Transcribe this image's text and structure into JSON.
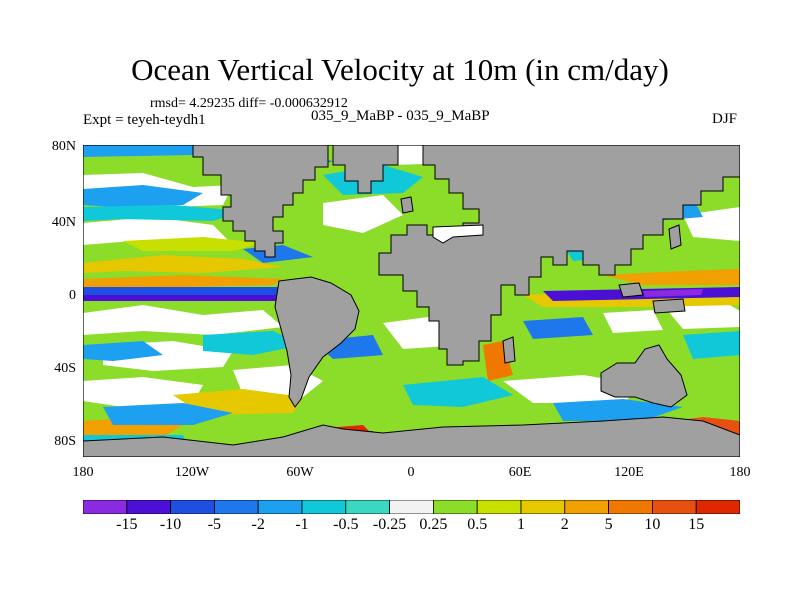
{
  "title": "Ocean Vertical Velocity at 10m (in cm/day)",
  "stats": "rmsd= 4.29235 diff= -0.000632912",
  "subtitle": "035_9_MaBP - 035_9_MaBP",
  "expt": "Expt = teyeh-teydh1",
  "season": "DJF",
  "lat_labels": [
    "80N",
    "40N",
    "0",
    "40S",
    "80S"
  ],
  "lon_labels": [
    "180",
    "120W",
    "60W",
    "0",
    "60E",
    "120E",
    "180"
  ],
  "colorbar": {
    "labels": [
      "-15",
      "-10",
      "-5",
      "-2",
      "-1",
      "-0.5",
      "-0.25",
      "0.25",
      "0.5",
      "1",
      "2",
      "5",
      "10",
      "15"
    ],
    "colors": [
      "#8a2be2",
      "#4b0fd6",
      "#1f4fe0",
      "#1e78ec",
      "#1ea0f0",
      "#10c8d8",
      "#3cd7c0",
      "#f2f2f2",
      "#8cdc2a",
      "#c8e000",
      "#e6c800",
      "#f0a000",
      "#f07800",
      "#e85010",
      "#e02800"
    ]
  },
  "colors": {
    "land": "#a0a0a0",
    "white": "#ffffff"
  }
}
